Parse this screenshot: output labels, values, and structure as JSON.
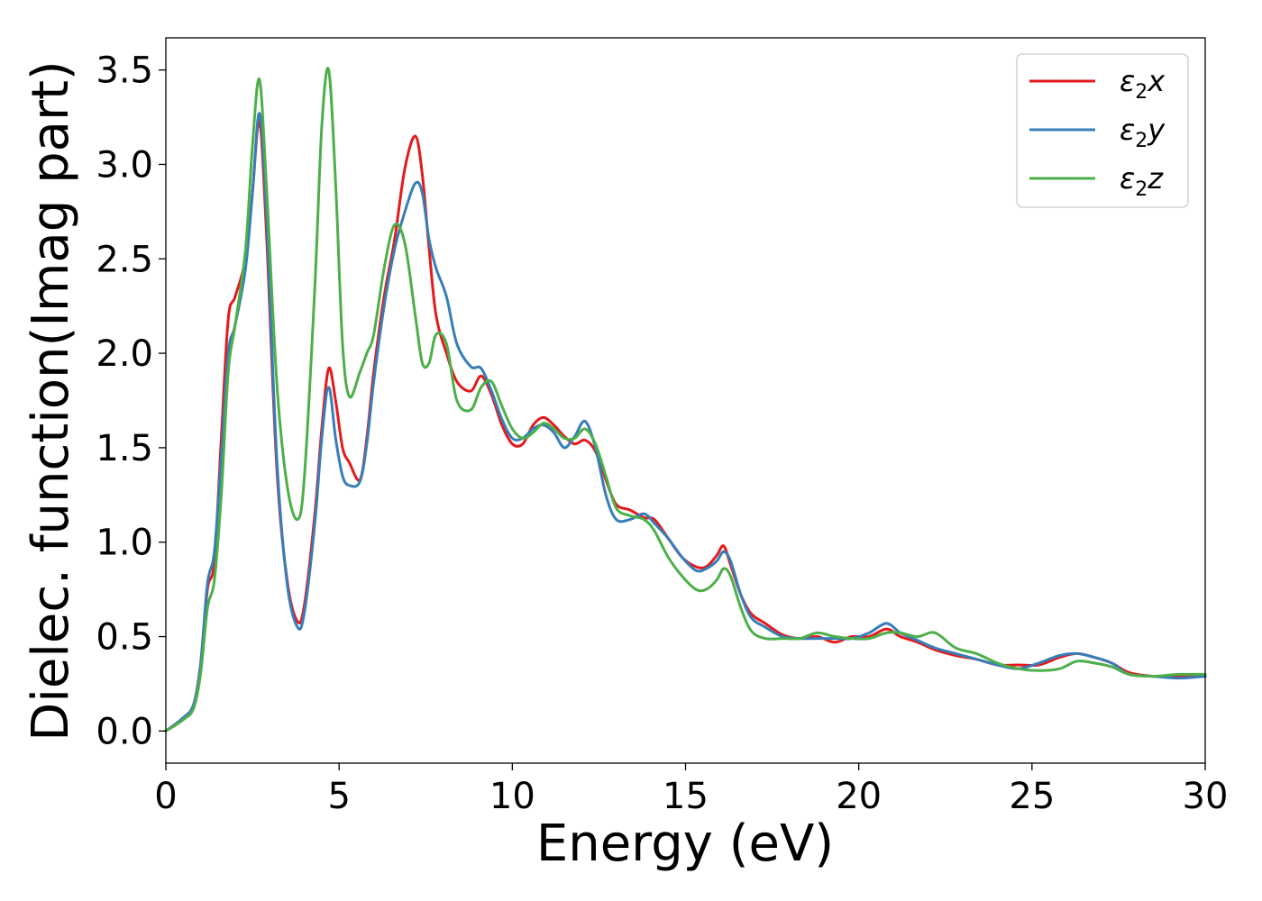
{
  "chart_data": {
    "type": "line",
    "xlabel": "Energy (eV)",
    "ylabel": "Dielec. function(Imag part)",
    "xlim": [
      0,
      30
    ],
    "ylim": [
      -0.17,
      3.67
    ],
    "xticks": [
      0,
      5,
      10,
      15,
      20,
      25,
      30
    ],
    "xtick_labels": [
      "0",
      "5",
      "10",
      "15",
      "20",
      "25",
      "30"
    ],
    "yticks": [
      0.0,
      0.5,
      1.0,
      1.5,
      2.0,
      2.5,
      3.0,
      3.5
    ],
    "ytick_labels": [
      "0.0",
      "0.5",
      "1.0",
      "1.5",
      "2.0",
      "2.5",
      "3.0",
      "3.5"
    ],
    "grid": false,
    "legend_position": "top-right",
    "series": [
      {
        "name": "ε2x",
        "legend_base": "ε",
        "legend_sub": "2",
        "legend_tail": "x",
        "color": "#e41a1c",
        "x": [
          0,
          0.5,
          0.8,
          1.0,
          1.2,
          1.4,
          1.6,
          1.8,
          2.0,
          2.3,
          2.5,
          2.7,
          2.9,
          3.2,
          3.5,
          3.8,
          4.0,
          4.3,
          4.5,
          4.7,
          4.9,
          5.1,
          5.3,
          5.6,
          5.8,
          6.0,
          6.3,
          6.6,
          6.9,
          7.2,
          7.4,
          7.6,
          7.8,
          8.1,
          8.4,
          8.8,
          9.1,
          9.4,
          9.7,
          10.0,
          10.3,
          10.6,
          10.9,
          11.2,
          11.5,
          11.8,
          12.1,
          12.4,
          12.7,
          13.0,
          13.4,
          13.8,
          14.1,
          14.5,
          14.9,
          15.3,
          15.6,
          15.9,
          16.1,
          16.3,
          16.6,
          16.9,
          17.3,
          17.8,
          18.3,
          18.8,
          19.3,
          19.8,
          20.3,
          20.8,
          21.2,
          21.7,
          22.2,
          22.8,
          23.4,
          24.0,
          24.6,
          25.2,
          25.8,
          26.3,
          26.8,
          27.3,
          27.8,
          28.5,
          29.2,
          30.0
        ],
        "y": [
          0.0,
          0.07,
          0.14,
          0.35,
          0.75,
          0.9,
          1.55,
          2.18,
          2.3,
          2.5,
          2.85,
          3.23,
          2.65,
          1.4,
          0.8,
          0.58,
          0.67,
          1.15,
          1.6,
          1.92,
          1.75,
          1.5,
          1.42,
          1.33,
          1.55,
          1.9,
          2.3,
          2.6,
          2.98,
          3.15,
          2.95,
          2.55,
          2.2,
          2.0,
          1.85,
          1.8,
          1.88,
          1.78,
          1.62,
          1.52,
          1.52,
          1.62,
          1.66,
          1.62,
          1.56,
          1.52,
          1.54,
          1.48,
          1.33,
          1.2,
          1.17,
          1.13,
          1.12,
          1.02,
          0.92,
          0.87,
          0.87,
          0.93,
          0.98,
          0.88,
          0.72,
          0.62,
          0.57,
          0.51,
          0.49,
          0.5,
          0.47,
          0.5,
          0.5,
          0.54,
          0.5,
          0.47,
          0.43,
          0.4,
          0.38,
          0.35,
          0.35,
          0.35,
          0.39,
          0.41,
          0.39,
          0.36,
          0.31,
          0.29,
          0.29,
          0.29
        ]
      },
      {
        "name": "ε2y",
        "legend_base": "ε",
        "legend_sub": "2",
        "legend_tail": "y",
        "color": "#377eb8",
        "x": [
          0,
          0.5,
          0.8,
          1.0,
          1.2,
          1.4,
          1.6,
          1.8,
          2.0,
          2.3,
          2.5,
          2.7,
          2.9,
          3.2,
          3.5,
          3.8,
          4.0,
          4.3,
          4.5,
          4.7,
          4.9,
          5.1,
          5.3,
          5.6,
          5.8,
          6.0,
          6.3,
          6.6,
          6.9,
          7.2,
          7.4,
          7.6,
          7.8,
          8.1,
          8.4,
          8.8,
          9.1,
          9.4,
          9.7,
          10.0,
          10.3,
          10.6,
          10.9,
          11.2,
          11.5,
          11.8,
          12.1,
          12.4,
          12.7,
          13.0,
          13.4,
          13.8,
          14.1,
          14.5,
          14.9,
          15.3,
          15.6,
          15.9,
          16.1,
          16.3,
          16.6,
          16.9,
          17.3,
          17.8,
          18.3,
          18.8,
          19.3,
          19.8,
          20.3,
          20.8,
          21.2,
          21.7,
          22.2,
          22.8,
          23.4,
          24.0,
          24.6,
          25.2,
          25.8,
          26.3,
          26.8,
          27.3,
          27.8,
          28.5,
          29.2,
          30.0
        ],
        "y": [
          0.0,
          0.07,
          0.14,
          0.35,
          0.78,
          0.95,
          1.45,
          2.0,
          2.15,
          2.45,
          2.85,
          3.27,
          2.75,
          1.45,
          0.78,
          0.55,
          0.63,
          1.1,
          1.55,
          1.82,
          1.55,
          1.35,
          1.3,
          1.32,
          1.52,
          1.85,
          2.25,
          2.55,
          2.75,
          2.9,
          2.85,
          2.6,
          2.45,
          2.3,
          2.05,
          1.93,
          1.92,
          1.8,
          1.65,
          1.55,
          1.55,
          1.6,
          1.62,
          1.58,
          1.5,
          1.56,
          1.64,
          1.5,
          1.25,
          1.12,
          1.12,
          1.15,
          1.1,
          1.02,
          0.92,
          0.85,
          0.86,
          0.9,
          0.95,
          0.9,
          0.72,
          0.6,
          0.55,
          0.5,
          0.49,
          0.49,
          0.49,
          0.49,
          0.52,
          0.57,
          0.52,
          0.48,
          0.44,
          0.41,
          0.38,
          0.35,
          0.33,
          0.36,
          0.4,
          0.41,
          0.39,
          0.36,
          0.3,
          0.29,
          0.28,
          0.29
        ]
      },
      {
        "name": "ε2z",
        "legend_base": "ε",
        "legend_sub": "2",
        "legend_tail": "z",
        "color": "#4daf4a",
        "x": [
          0,
          0.5,
          0.8,
          1.0,
          1.2,
          1.4,
          1.6,
          1.8,
          2.0,
          2.3,
          2.5,
          2.7,
          2.9,
          3.2,
          3.5,
          3.8,
          4.0,
          4.3,
          4.5,
          4.7,
          4.9,
          5.1,
          5.3,
          5.6,
          5.8,
          6.0,
          6.3,
          6.6,
          6.9,
          7.2,
          7.4,
          7.6,
          7.8,
          8.1,
          8.4,
          8.8,
          9.1,
          9.4,
          9.7,
          10.0,
          10.3,
          10.6,
          10.9,
          11.2,
          11.5,
          11.8,
          12.1,
          12.4,
          12.7,
          13.0,
          13.4,
          13.8,
          14.1,
          14.5,
          14.9,
          15.3,
          15.6,
          15.9,
          16.1,
          16.3,
          16.6,
          16.9,
          17.3,
          17.8,
          18.3,
          18.8,
          19.3,
          19.8,
          20.3,
          20.8,
          21.2,
          21.7,
          22.2,
          22.8,
          23.4,
          24.0,
          24.6,
          25.2,
          25.8,
          26.3,
          26.8,
          27.3,
          27.8,
          28.5,
          29.2,
          30.0
        ],
        "y": [
          0.0,
          0.06,
          0.12,
          0.3,
          0.65,
          0.8,
          1.25,
          1.9,
          2.15,
          2.55,
          3.1,
          3.45,
          2.9,
          1.85,
          1.3,
          1.12,
          1.35,
          2.35,
          3.2,
          3.5,
          2.9,
          2.05,
          1.77,
          1.9,
          2.0,
          2.1,
          2.45,
          2.68,
          2.58,
          2.2,
          1.95,
          1.95,
          2.1,
          2.05,
          1.75,
          1.7,
          1.82,
          1.85,
          1.72,
          1.6,
          1.55,
          1.58,
          1.63,
          1.6,
          1.55,
          1.55,
          1.6,
          1.52,
          1.35,
          1.18,
          1.14,
          1.12,
          1.06,
          0.92,
          0.82,
          0.75,
          0.75,
          0.8,
          0.86,
          0.82,
          0.65,
          0.53,
          0.49,
          0.49,
          0.49,
          0.52,
          0.5,
          0.49,
          0.49,
          0.52,
          0.52,
          0.5,
          0.52,
          0.44,
          0.41,
          0.36,
          0.33,
          0.32,
          0.33,
          0.37,
          0.36,
          0.34,
          0.3,
          0.29,
          0.3,
          0.3
        ]
      }
    ]
  }
}
